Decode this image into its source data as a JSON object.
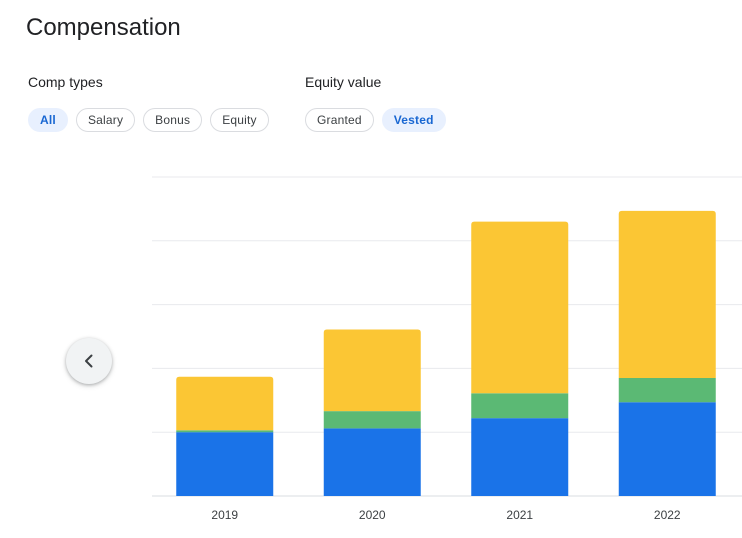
{
  "header": {
    "title": "Compensation"
  },
  "filters": {
    "comp_types": {
      "label": "Comp types",
      "chips": [
        {
          "label": "All",
          "selected": true
        },
        {
          "label": "Salary",
          "selected": false
        },
        {
          "label": "Bonus",
          "selected": false
        },
        {
          "label": "Equity",
          "selected": false
        }
      ]
    },
    "equity_value": {
      "label": "Equity value",
      "chips": [
        {
          "label": "Granted",
          "selected": false
        },
        {
          "label": "Vested",
          "selected": true
        }
      ]
    }
  },
  "nav": {
    "prev_icon": "chevron-left-icon"
  },
  "colors": {
    "salary": "#1a73e8",
    "bonus": "#5bb974",
    "equity": "#fbc634",
    "gridline": "#e8eaed",
    "chip_selected_bg": "#e8f0fe",
    "chip_selected_text": "#1967d2"
  },
  "chart_data": {
    "type": "bar",
    "stacked": true,
    "categories": [
      "2019",
      "2020",
      "2021",
      "2022"
    ],
    "series": [
      {
        "key": "salary",
        "values": [
          1.0,
          1.06,
          1.22,
          1.47
        ]
      },
      {
        "key": "bonus",
        "values": [
          0.03,
          0.27,
          0.39,
          0.38
        ]
      },
      {
        "key": "equity",
        "values": [
          0.84,
          1.28,
          2.69,
          2.62
        ]
      }
    ],
    "ylim": [
      0,
      5
    ],
    "grid": true,
    "ytick_labels_shown": false
  }
}
